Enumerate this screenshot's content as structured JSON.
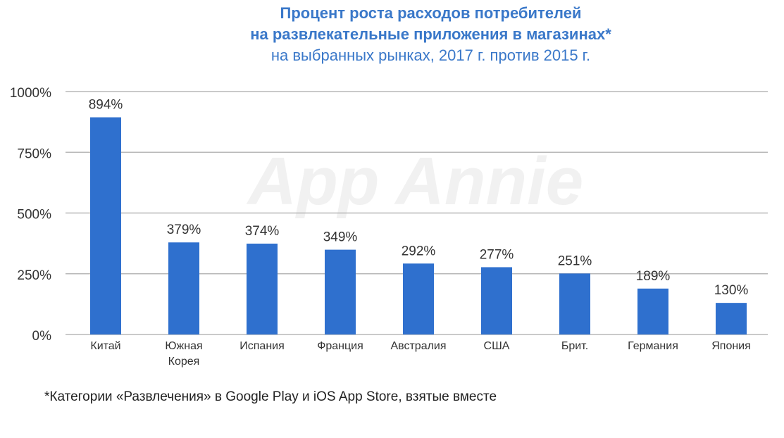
{
  "title_lines": [
    "Процент роста расходов потребителей",
    "на развлекательные приложения в магазинах*"
  ],
  "subtitle": "на выбранных рынках, 2017 г. против 2015 г.",
  "watermark": "App Annie",
  "footnote": "*Категории «Развлечения» в Google Play и iOS App Store, взятые вместе",
  "colors": {
    "bar": "#2f70ce",
    "title": "#3a78c9",
    "grid": "#b8b8b8",
    "axis_text": "#333333"
  },
  "chart_data": {
    "type": "bar",
    "categories": [
      [
        "Китай"
      ],
      [
        "Южная",
        "Корея"
      ],
      [
        "Испания"
      ],
      [
        "Франция"
      ],
      [
        "Австралия"
      ],
      [
        "США"
      ],
      [
        "Брит."
      ],
      [
        "Германия"
      ],
      [
        "Япония"
      ]
    ],
    "values": [
      894,
      379,
      374,
      349,
      292,
      277,
      251,
      189,
      130
    ],
    "value_labels": [
      "894%",
      "379%",
      "374%",
      "349%",
      "292%",
      "277%",
      "251%",
      "189%",
      "130%"
    ],
    "ylim": [
      0,
      1000
    ],
    "yticks": [
      0,
      250,
      500,
      750,
      1000
    ],
    "ytick_labels": [
      "0%",
      "250%",
      "500%",
      "750%",
      "1000%"
    ],
    "grid": true,
    "legend": "none"
  }
}
